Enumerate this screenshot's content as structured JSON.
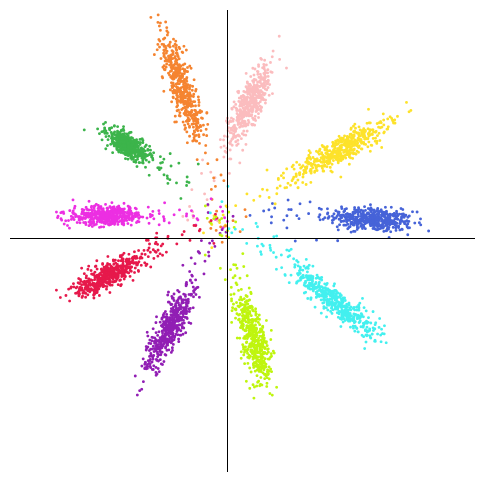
{
  "chart_data": {
    "type": "scatter",
    "title": "",
    "xlabel": "",
    "ylabel": "",
    "xlim": [
      -1.0,
      1.25
    ],
    "ylim": [
      -1.25,
      1.0
    ],
    "grid": false,
    "legend": "none",
    "axes_through_origin": true,
    "points_per_cluster": 500,
    "series": [
      {
        "color": "#4663d8",
        "center": [
          0.75,
          -0.02
        ],
        "angle_deg": -5,
        "major_sd": 0.1,
        "minor_sd": 0.028
      },
      {
        "color": "#fde22a",
        "center": [
          0.6,
          0.32
        ],
        "angle_deg": 30,
        "major_sd": 0.13,
        "minor_sd": 0.03
      },
      {
        "color": "#fbbcbe",
        "center": [
          0.16,
          0.55
        ],
        "angle_deg": 64,
        "major_sd": 0.11,
        "minor_sd": 0.03
      },
      {
        "color": "#f58430",
        "center": [
          -0.17,
          0.62
        ],
        "angle_deg": 108,
        "major_sd": 0.13,
        "minor_sd": 0.03
      },
      {
        "color": "#3cb44b",
        "center": [
          -0.43,
          0.34
        ],
        "angle_deg": 146,
        "major_sd": 0.06,
        "minor_sd": 0.025
      },
      {
        "color": "#ec2fe2",
        "center": [
          -0.53,
          0.0
        ],
        "angle_deg": 180,
        "major_sd": 0.1,
        "minor_sd": 0.022
      },
      {
        "color": "#e6194b",
        "center": [
          -0.52,
          -0.29
        ],
        "angle_deg": 208,
        "major_sd": 0.1,
        "minor_sd": 0.026
      },
      {
        "color": "#911eb4",
        "center": [
          -0.23,
          -0.55
        ],
        "angle_deg": 243,
        "major_sd": 0.11,
        "minor_sd": 0.03
      },
      {
        "color": "#bff50e",
        "center": [
          0.18,
          -0.6
        ],
        "angle_deg": 285,
        "major_sd": 0.12,
        "minor_sd": 0.03
      },
      {
        "color": "#43f0ef",
        "center": [
          0.57,
          -0.42
        ],
        "angle_deg": 320,
        "major_sd": 0.13,
        "minor_sd": 0.03
      }
    ]
  }
}
